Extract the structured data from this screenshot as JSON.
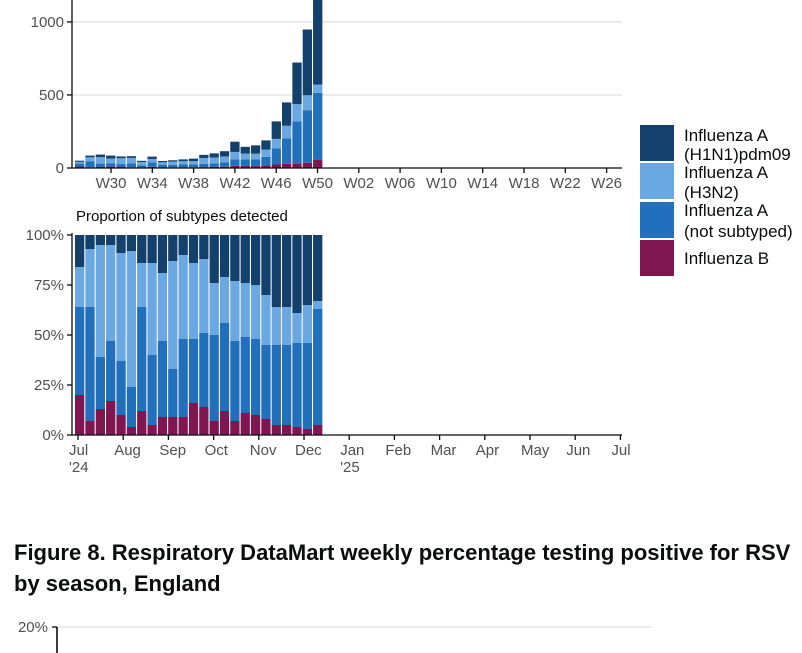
{
  "colors": {
    "h1n1": "#14416b",
    "h3n2": "#6ba7e1",
    "a_not_subtyped": "#2270bc",
    "flu_b": "#801650",
    "axis": "#0b0c0c",
    "grid": "#d8d8d8"
  },
  "legend": [
    {
      "key": "h1n1",
      "line1": "Influenza A",
      "line2": "(H1N1)pdm09"
    },
    {
      "key": "h3n2",
      "line1": "Influenza A",
      "line2": "(H3N2)"
    },
    {
      "key": "a_not_subtyped",
      "line1": "Influenza A",
      "line2": "(not subtyped)"
    },
    {
      "key": "flu_b",
      "line1": "Influenza B",
      "line2": ""
    }
  ],
  "chart_data": [
    {
      "type": "bar",
      "stacked": true,
      "title": "",
      "xlabel": "",
      "ylabel": "",
      "ylim": [
        0,
        1150
      ],
      "yticks": [
        "0",
        "500",
        "1000"
      ],
      "ytick_values": [
        0,
        500,
        1000
      ],
      "xticks": [
        "W30",
        "W34",
        "W38",
        "W42",
        "W46",
        "W50",
        "W02",
        "W06",
        "W10",
        "W14",
        "W18",
        "W22",
        "W26"
      ],
      "categories": [
        "W27",
        "W28",
        "W29",
        "W30",
        "W31",
        "W32",
        "W33",
        "W34",
        "W35",
        "W36",
        "W37",
        "W38",
        "W39",
        "W40",
        "W41",
        "W42",
        "W43",
        "W44",
        "W45",
        "W46",
        "W47",
        "W48",
        "W49",
        "W50"
      ],
      "series": [
        {
          "name": "Influenza B",
          "key": "flu_b",
          "values": [
            10,
            5,
            7,
            11,
            7,
            5,
            2,
            8,
            3,
            4,
            4,
            5,
            6,
            7,
            9,
            15,
            14,
            13,
            18,
            24,
            28,
            30,
            36,
            55
          ]
        },
        {
          "name": "Influenza A (not subtyped)",
          "key": "a_not_subtyped",
          "values": [
            20,
            40,
            23,
            20,
            20,
            26,
            15,
            30,
            20,
            18,
            20,
            20,
            22,
            25,
            30,
            45,
            45,
            45,
            58,
            110,
            175,
            290,
            360,
            460
          ]
        },
        {
          "name": "Influenza A (H3N2)",
          "key": "h3n2",
          "values": [
            12,
            28,
            44,
            34,
            40,
            38,
            24,
            24,
            16,
            22,
            22,
            22,
            40,
            40,
            40,
            50,
            40,
            40,
            50,
            65,
            86,
            117,
            102,
            56
          ]
        },
        {
          "name": "Influenza A (H1N1)pdm09",
          "key": "h1n1",
          "values": [
            8,
            12,
            18,
            20,
            12,
            12,
            8,
            16,
            9,
            9,
            13,
            17,
            22,
            28,
            36,
            70,
            46,
            57,
            63,
            120,
            160,
            285,
            450,
            700
          ]
        }
      ]
    },
    {
      "type": "bar",
      "stacked": true,
      "percent": true,
      "title": "Proportion of subtypes detected",
      "xlabel": "",
      "ylabel": "",
      "ylim": [
        0,
        100
      ],
      "yticks": [
        "0%",
        "25%",
        "50%",
        "75%",
        "100%"
      ],
      "ytick_values": [
        0,
        25,
        50,
        75,
        100
      ],
      "xticks": [
        "Jul\n'24",
        "Aug",
        "Sep",
        "Oct",
        "Nov",
        "Dec",
        "Jan\n'25",
        "Feb",
        "Mar",
        "Apr",
        "May",
        "Jun",
        "Jul"
      ],
      "categories": [
        "W27",
        "W28",
        "W29",
        "W30",
        "W31",
        "W32",
        "W33",
        "W34",
        "W35",
        "W36",
        "W37",
        "W38",
        "W39",
        "W40",
        "W41",
        "W42",
        "W43",
        "W44",
        "W45",
        "W46",
        "W47",
        "W48",
        "W49",
        "W50"
      ],
      "series": [
        {
          "name": "Influenza B",
          "key": "flu_b",
          "values": [
            20,
            7,
            13,
            17,
            10,
            4,
            12,
            5,
            9,
            9,
            9,
            16,
            14,
            7,
            12,
            7,
            11,
            10,
            8,
            5,
            5,
            4,
            3,
            5
          ]
        },
        {
          "name": "Influenza A (not subtyped)",
          "key": "a_not_subtyped",
          "values": [
            44,
            57,
            26,
            30,
            27,
            20,
            52,
            35,
            38,
            24,
            39,
            32,
            37,
            43,
            44,
            40,
            38,
            38,
            37,
            40,
            40,
            42,
            43,
            58
          ]
        },
        {
          "name": "Influenza A (H3N2)",
          "key": "h3n2",
          "values": [
            20,
            29,
            56,
            48,
            54,
            68,
            22,
            46,
            34,
            54,
            42,
            38,
            37,
            26,
            23,
            30,
            27,
            27,
            25,
            19,
            19,
            15,
            19,
            4
          ]
        },
        {
          "name": "Influenza A (H1N1)pdm09",
          "key": "h1n1",
          "values": [
            16,
            7,
            5,
            5,
            9,
            8,
            14,
            14,
            19,
            13,
            10,
            14,
            12,
            24,
            21,
            23,
            24,
            25,
            30,
            36,
            36,
            39,
            35,
            33
          ]
        }
      ]
    },
    {
      "type": "line",
      "title": "",
      "xlabel": "",
      "ylabel": "",
      "yticks": [
        "20%"
      ],
      "ytick_values": [
        20
      ],
      "series": []
    }
  ],
  "figure8": {
    "title_line1": "Figure 8. Respiratory DataMart weekly percentage testing positive for RSV",
    "title_line2": "by season, England"
  }
}
